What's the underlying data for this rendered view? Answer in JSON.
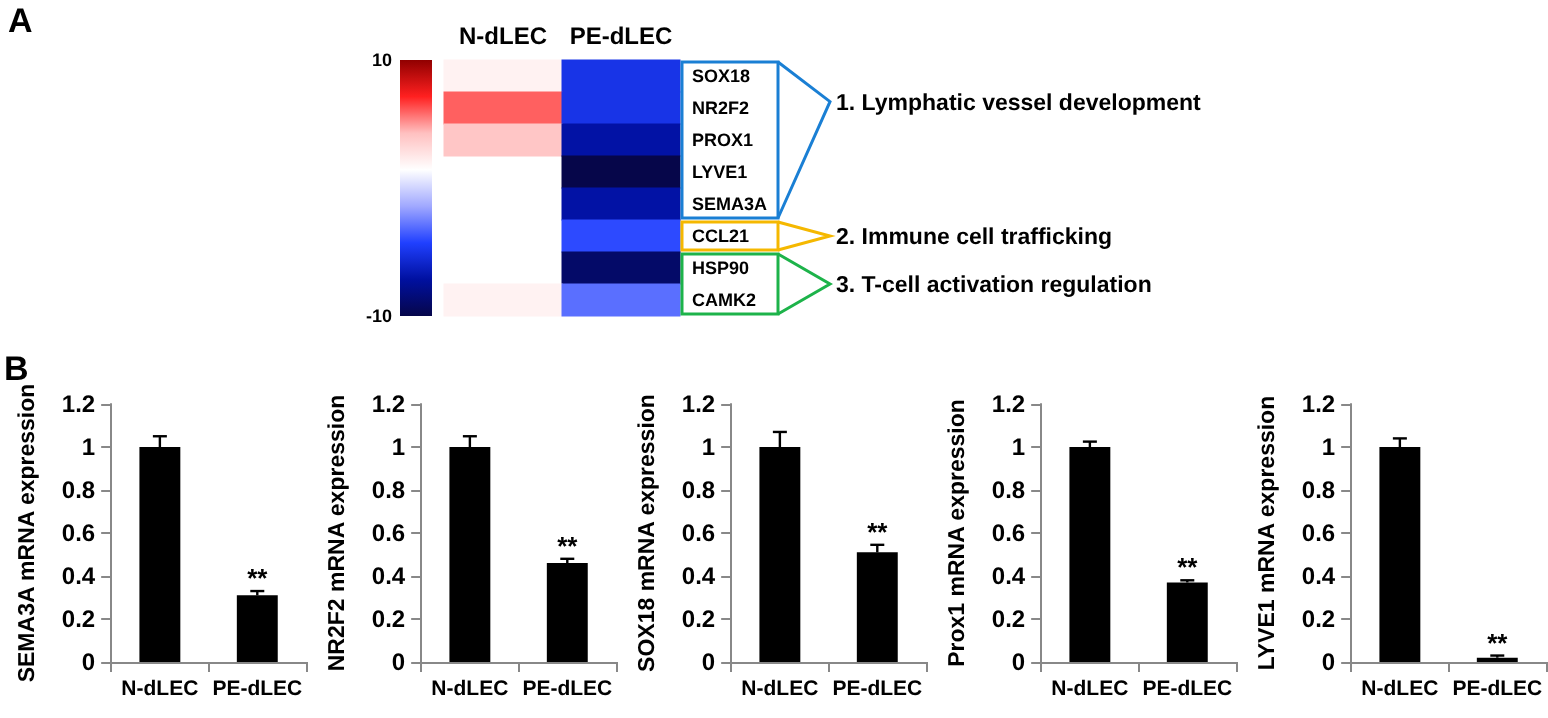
{
  "chart_data": [
    {
      "type": "heatmap",
      "categories": [
        "N-dLEC",
        "PE-dLEC"
      ],
      "y_categories": [
        "SOX18",
        "NR2F2",
        "PROX1",
        "LYVE1",
        "SEMA3A",
        "CCL21",
        "HSP90",
        "CAMK2"
      ],
      "cells": [
        [
          2,
          -5
        ],
        [
          6,
          -5
        ],
        [
          4,
          -7
        ],
        [
          null,
          -10
        ],
        [
          null,
          -7
        ],
        [
          null,
          -4
        ],
        [
          null,
          -9
        ],
        [
          2,
          -3
        ]
      ],
      "clim": [
        -10,
        10
      ],
      "cticks": [
        -10,
        10
      ],
      "annotations": [
        "A",
        "1. Lymphatic vessel development",
        "2. Immune cell trafficking",
        "3. T-cell activation regulation"
      ]
    },
    {
      "type": "bar",
      "categories": [
        "N-dLEC",
        "PE-dLEC"
      ],
      "values": [
        1,
        0.31
      ],
      "errors": [
        0.05,
        0.02
      ],
      "color": "#000000",
      "ylabel": "SEMA3A mRNA expression",
      "ylim": [
        0,
        1.2
      ],
      "yticks": [
        0,
        0.2,
        0.4,
        0.6,
        0.8,
        1,
        1.2
      ],
      "annotations": [
        "B",
        {
          "text": "**",
          "x": "PE-dLEC",
          "y": 0.33
        }
      ]
    },
    {
      "type": "bar",
      "categories": [
        "N-dLEC",
        "PE-dLEC"
      ],
      "values": [
        1,
        0.46
      ],
      "errors": [
        0.05,
        0.02
      ],
      "color": "#000000",
      "ylabel": "NR2F2 mRNA expression",
      "ylim": [
        0,
        1.2
      ],
      "yticks": [
        0,
        0.2,
        0.4,
        0.6,
        0.8,
        1,
        1.2
      ],
      "annotations": [
        {
          "text": "**",
          "x": "PE-dLEC",
          "y": 0.48
        }
      ]
    },
    {
      "type": "bar",
      "categories": [
        "N-dLEC",
        "PE-dLEC"
      ],
      "values": [
        1,
        0.51
      ],
      "errors": [
        0.07,
        0.035
      ],
      "color": "#000000",
      "ylabel": "SOX18 mRNA expression",
      "ylim": [
        0,
        1.2
      ],
      "yticks": [
        0,
        0.2,
        0.4,
        0.6,
        0.8,
        1,
        1.2
      ],
      "annotations": [
        {
          "text": "**",
          "x": "PE-dLEC",
          "y": 0.545
        }
      ]
    },
    {
      "type": "bar",
      "categories": [
        "N-dLEC",
        "PE-dLEC"
      ],
      "values": [
        1,
        0.37
      ],
      "errors": [
        0.025,
        0.01
      ],
      "color": "#000000",
      "ylabel": "Prox1 mRNA expression",
      "ylim": [
        0,
        1.2
      ],
      "yticks": [
        0,
        0.2,
        0.4,
        0.6,
        0.8,
        1,
        1.2
      ],
      "annotations": [
        {
          "text": "**",
          "x": "PE-dLEC",
          "y": 0.38
        }
      ]
    },
    {
      "type": "bar",
      "categories": [
        "N-dLEC",
        "PE-dLEC"
      ],
      "values": [
        1,
        0.02
      ],
      "errors": [
        0.04,
        0.01
      ],
      "color": "#000000",
      "ylabel": "LYVE1 mRNA expression",
      "ylim": [
        0,
        1.2
      ],
      "yticks": [
        0,
        0.2,
        0.4,
        0.6,
        0.8,
        1,
        1.2
      ],
      "annotations": [
        {
          "text": "**",
          "x": "PE-dLEC",
          "y": 0.03
        }
      ]
    }
  ]
}
